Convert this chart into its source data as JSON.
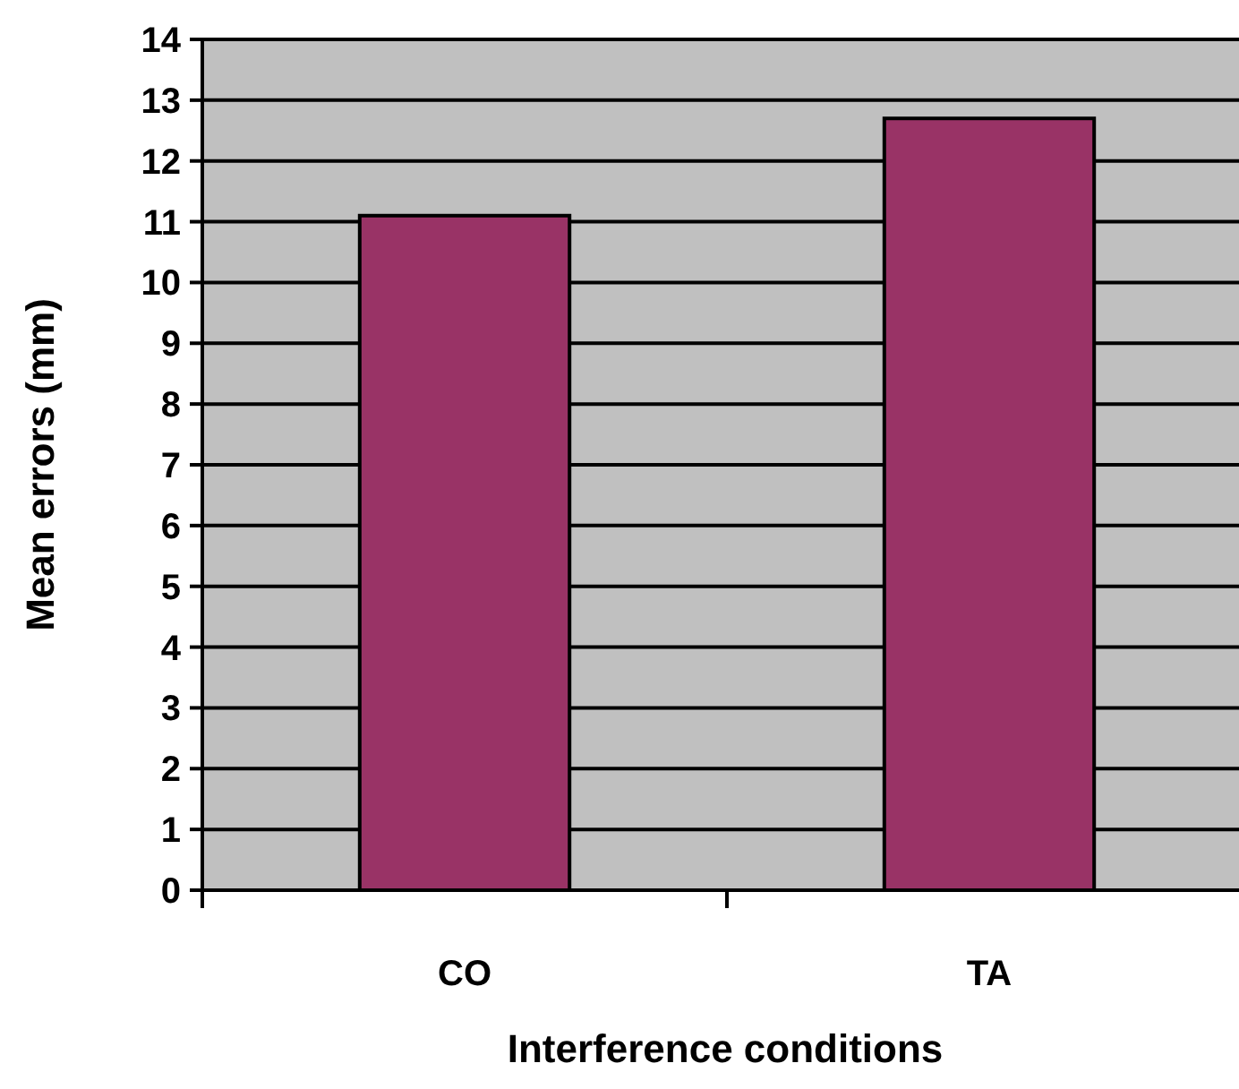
{
  "chart_data": {
    "type": "bar",
    "xlabel": "Interference conditions",
    "ylabel": "Mean errors (mm)",
    "categories": [
      "CO",
      "TA"
    ],
    "values": [
      11.1,
      12.7
    ],
    "color": "#993366",
    "ylim": [
      0,
      14
    ],
    "yticks": [
      0,
      1,
      2,
      3,
      4,
      5,
      6,
      7,
      8,
      9,
      10,
      11,
      12,
      13,
      14
    ],
    "grid": "y"
  }
}
